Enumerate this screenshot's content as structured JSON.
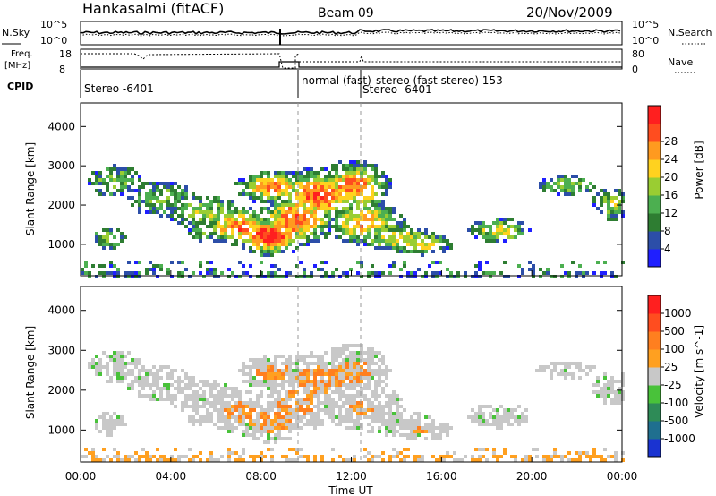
{
  "header": {
    "station": "Hankasalmi (fitACF)",
    "beam": "Beam 09",
    "date": "20/Nov/2009"
  },
  "noise_panel": {
    "left_label": "N.Sky",
    "right_label": "N.Search",
    "left_ticks": [
      "10^5",
      "10^0"
    ],
    "right_ticks": [
      "10^5",
      "10^0"
    ]
  },
  "freq_panel": {
    "left_label_1": "Freq.",
    "left_label_2": "[MHz]",
    "left_ticks": [
      "18",
      "8"
    ],
    "right_label": "Nave",
    "right_ticks": [
      "80",
      "0"
    ]
  },
  "cpid": {
    "label": "CPID",
    "segments": [
      {
        "text": "Stereo -6401"
      },
      {
        "text": "normal (fast)"
      },
      {
        "text": "stereo (fast stereo) 153"
      },
      {
        "text": "Stereo -6401"
      }
    ]
  },
  "chart_data": [
    {
      "type": "heatmap",
      "name": "power",
      "ylabel": "Slant Range [km]",
      "yticks": [
        "1000",
        "2000",
        "3000",
        "4000"
      ],
      "colorbar": {
        "label": "Power [dB]",
        "ticks": [
          "4",
          "8",
          "12",
          "16",
          "20",
          "24",
          "28"
        ],
        "colors": [
          "#1f1fff",
          "#2c4ea8",
          "#2e7d32",
          "#4caf50",
          "#9acd32",
          "#ffd21f",
          "#ff9a1f",
          "#ff4d1f",
          "#ff1f1f"
        ]
      }
    },
    {
      "type": "heatmap",
      "name": "velocity",
      "ylabel": "Slant Range [km]",
      "yticks": [
        "1000",
        "2000",
        "3000",
        "4000"
      ],
      "colorbar": {
        "label": "Velocity [m s^-1]",
        "ticks": [
          "1000",
          "500",
          "100",
          "25",
          "-25",
          "-100",
          "-500",
          "-1000"
        ],
        "colors": [
          "#1a33d1",
          "#1f6f8f",
          "#2e8b57",
          "#49c23a",
          "#c8c8c8",
          "#ffa020",
          "#ff7f1f",
          "#ff4d1f",
          "#ff1f1f"
        ]
      }
    }
  ],
  "xaxis": {
    "label": "Time UT",
    "ticks": [
      "00:00",
      "04:00",
      "08:00",
      "12:00",
      "16:00",
      "20:00",
      "00:00"
    ]
  }
}
